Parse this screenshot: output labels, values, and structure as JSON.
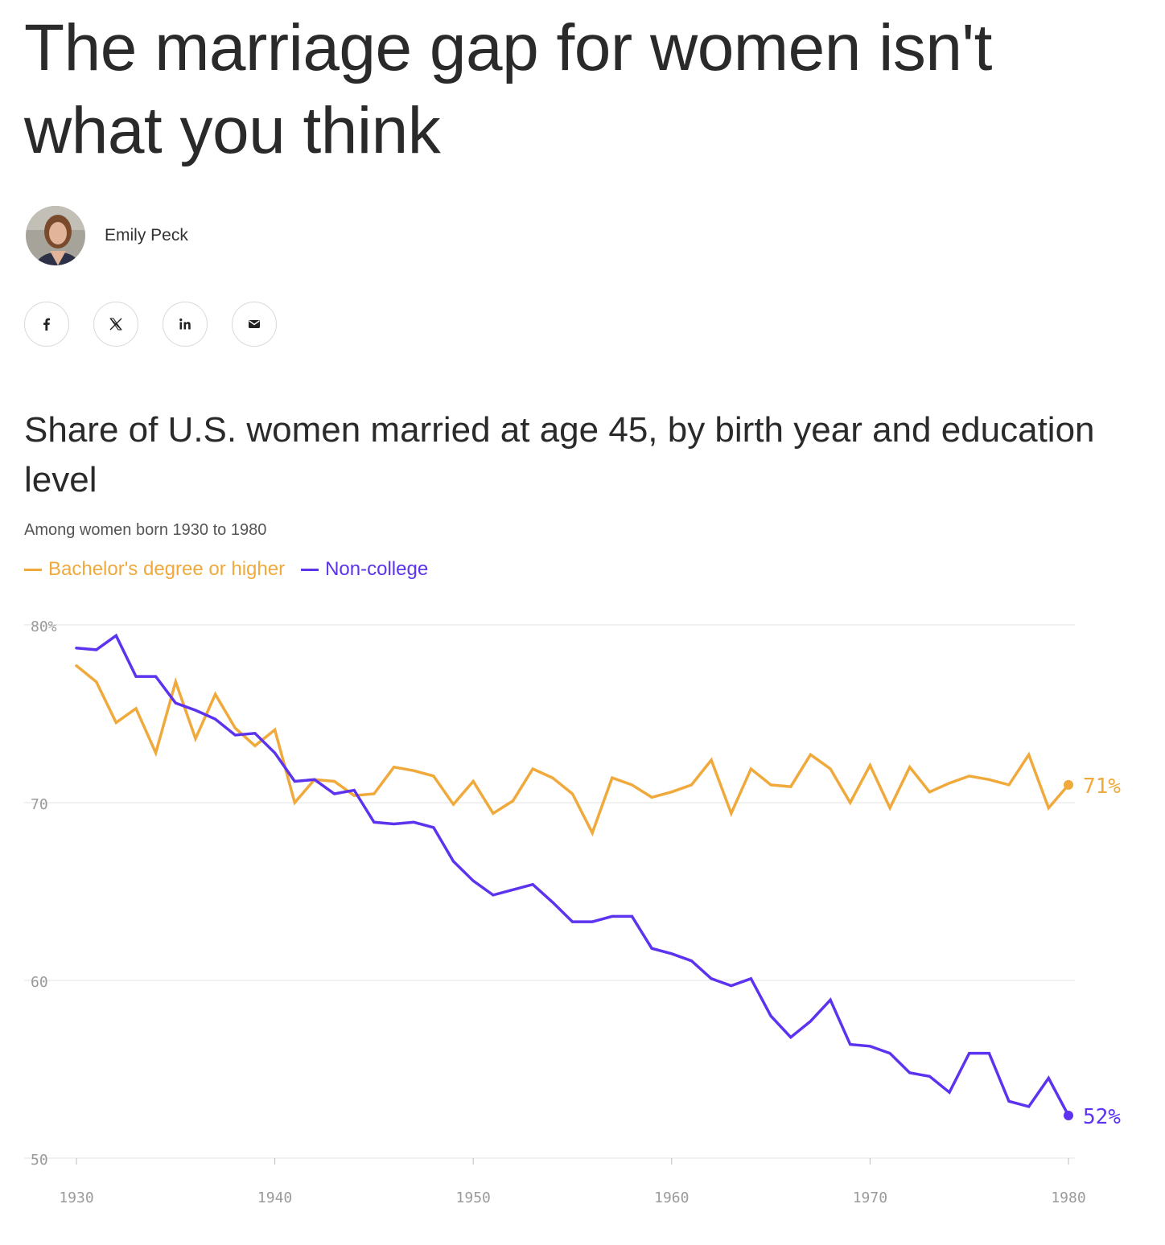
{
  "article": {
    "headline": "The marriage gap for women isn't what you think",
    "author": "Emily Peck"
  },
  "share": [
    {
      "icon": "facebook-icon",
      "label": "f"
    },
    {
      "icon": "x-icon",
      "label": "X"
    },
    {
      "icon": "linkedin-icon",
      "label": "in"
    },
    {
      "icon": "mail-icon",
      "label": "mail"
    }
  ],
  "colors": {
    "college": "#f0a93b",
    "noncollege": "#5c33ee",
    "grid": "#e3e3e3",
    "text": "#2a2a2a"
  },
  "chart_data": {
    "type": "line",
    "title": "Share of U.S. women married at age 45, by birth year and education level",
    "subtitle": "Among women born 1930 to 1980",
    "xlabel": "",
    "ylabel": "",
    "xlim": [
      1930,
      1980
    ],
    "ylim": [
      50,
      80
    ],
    "y_ticks": [
      "80%",
      "70",
      "60",
      "50"
    ],
    "x_ticks": [
      "1930",
      "1940",
      "1950",
      "1960",
      "1970",
      "1980"
    ],
    "grid": true,
    "legend": "top-left",
    "x": [
      1930,
      1931,
      1932,
      1933,
      1934,
      1935,
      1936,
      1937,
      1938,
      1939,
      1940,
      1941,
      1942,
      1943,
      1944,
      1945,
      1946,
      1947,
      1948,
      1949,
      1950,
      1951,
      1952,
      1953,
      1954,
      1955,
      1956,
      1957,
      1958,
      1959,
      1960,
      1961,
      1962,
      1963,
      1964,
      1965,
      1966,
      1967,
      1968,
      1969,
      1970,
      1971,
      1972,
      1973,
      1974,
      1975,
      1976,
      1977,
      1978,
      1979,
      1980
    ],
    "series": [
      {
        "name": "Bachelor's degree or higher",
        "end_label": "71%",
        "values": [
          77.7,
          76.8,
          74.5,
          75.3,
          72.8,
          76.8,
          73.6,
          76.1,
          74.2,
          73.2,
          74.1,
          70.0,
          71.3,
          71.2,
          70.4,
          70.5,
          72.0,
          71.8,
          71.5,
          69.9,
          71.2,
          69.4,
          70.1,
          71.9,
          71.4,
          70.5,
          68.3,
          71.4,
          71.0,
          70.3,
          70.6,
          71.0,
          72.4,
          69.4,
          71.9,
          71.0,
          70.9,
          72.7,
          71.9,
          70.0,
          72.1,
          69.7,
          72.0,
          70.6,
          71.1,
          71.5,
          71.3,
          71.0,
          72.7,
          69.7,
          71.0
        ]
      },
      {
        "name": "Non-college",
        "end_label": "52%",
        "values": [
          78.7,
          78.6,
          79.4,
          77.1,
          77.1,
          75.6,
          75.2,
          74.7,
          73.8,
          73.9,
          72.8,
          71.2,
          71.3,
          70.5,
          70.7,
          68.9,
          68.8,
          68.9,
          68.6,
          66.7,
          65.6,
          64.8,
          65.1,
          65.4,
          64.4,
          63.3,
          63.3,
          63.6,
          63.6,
          61.8,
          61.5,
          61.1,
          60.1,
          59.7,
          60.1,
          58.0,
          56.8,
          57.7,
          58.9,
          56.4,
          56.3,
          55.9,
          54.8,
          54.6,
          53.7,
          55.9,
          55.9,
          53.2,
          52.9,
          54.5,
          52.4
        ]
      }
    ]
  }
}
